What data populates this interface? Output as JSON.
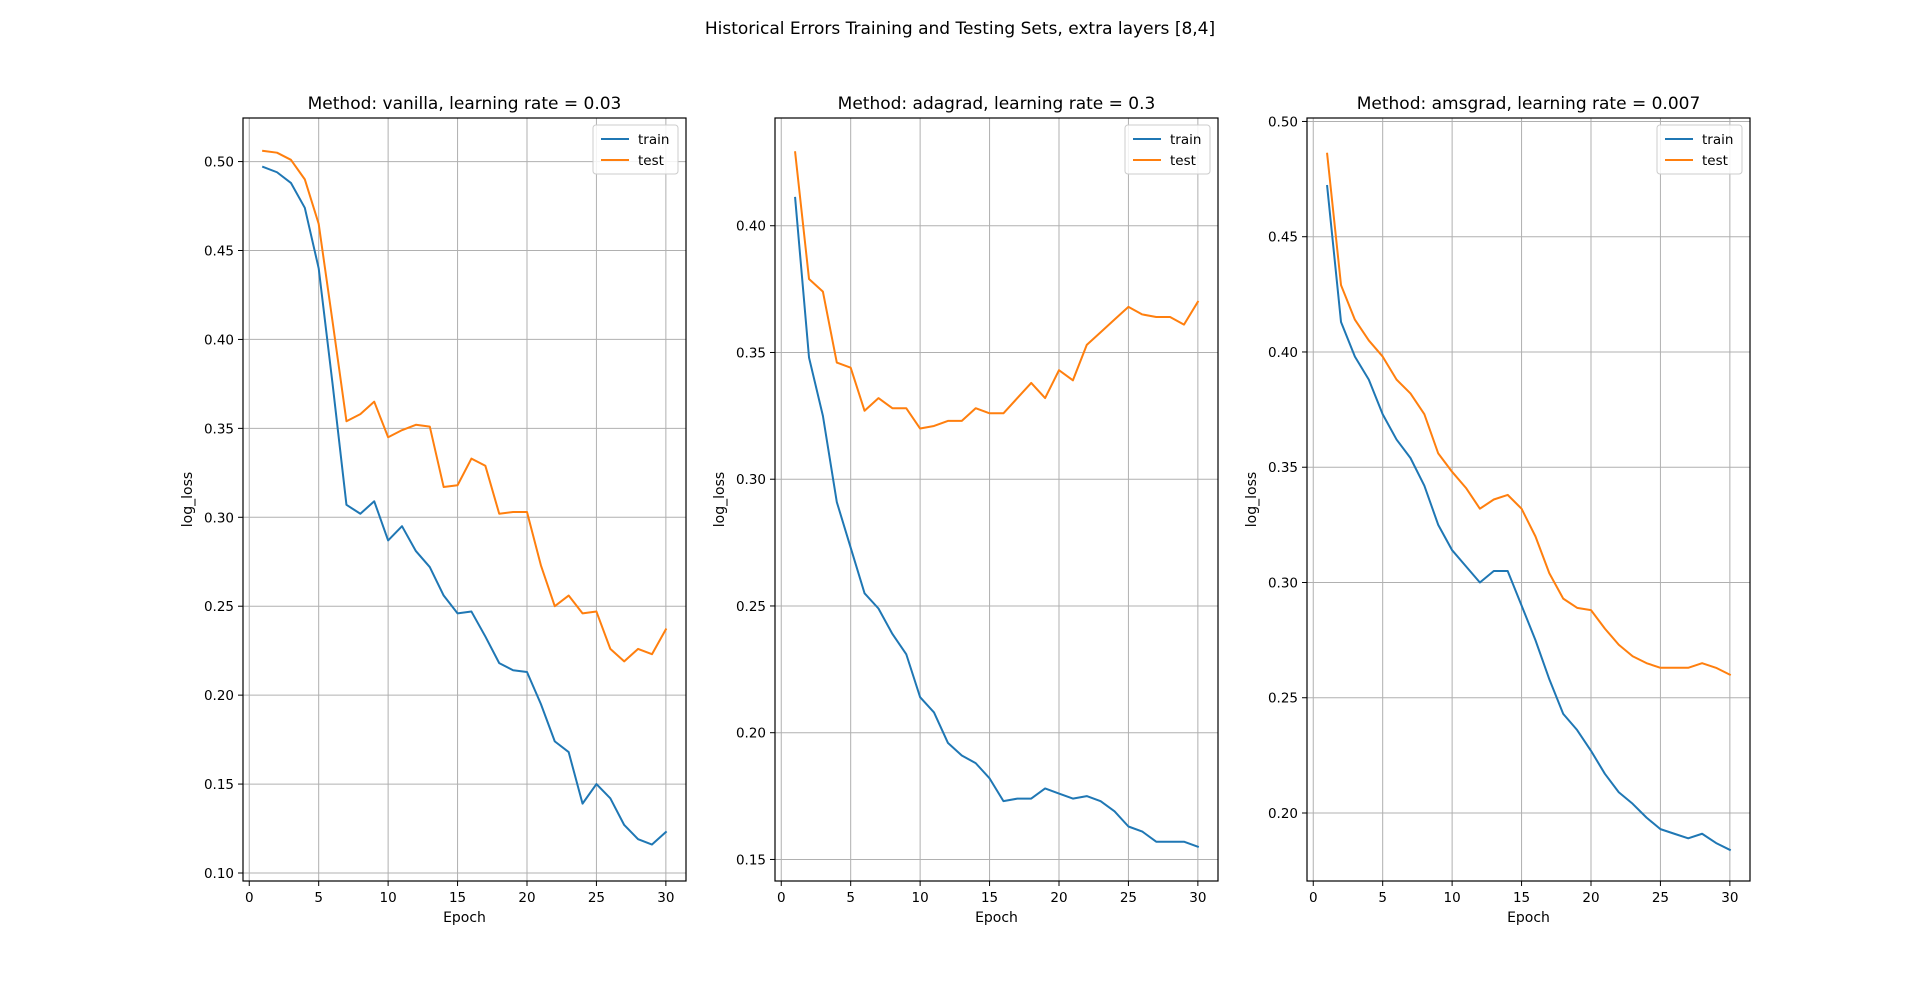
{
  "figure_title": "Historical Errors Training and Testing Sets, extra layers [8,4]",
  "colors": {
    "train": "#1f77b4",
    "test": "#ff7f0e",
    "grid": "#b0b0b0"
  },
  "chart_data": [
    {
      "type": "line",
      "title": "Method: vanilla, learning rate = 0.03",
      "xlabel": "Epoch",
      "ylabel": "log_loss",
      "xlim": [
        -0.45,
        31.45
      ],
      "ylim": [
        0.0955,
        0.5245
      ],
      "xticks": [
        0,
        5,
        10,
        15,
        20,
        25,
        30
      ],
      "yticks": [
        0.1,
        0.15,
        0.2,
        0.25,
        0.3,
        0.35,
        0.4,
        0.45,
        0.5
      ],
      "ytick_labels": [
        "0.10",
        "0.15",
        "0.20",
        "0.25",
        "0.30",
        "0.35",
        "0.40",
        "0.45",
        "0.50"
      ],
      "grid": true,
      "legend": "upper right",
      "x": [
        1,
        2,
        3,
        4,
        5,
        6,
        7,
        8,
        9,
        10,
        11,
        12,
        13,
        14,
        15,
        16,
        17,
        18,
        19,
        20,
        21,
        22,
        23,
        24,
        25,
        26,
        27,
        28,
        29,
        30
      ],
      "series": [
        {
          "name": "train",
          "color": "#1f77b4",
          "values": [
            0.497,
            0.494,
            0.488,
            0.474,
            0.44,
            0.375,
            0.307,
            0.302,
            0.309,
            0.287,
            0.295,
            0.281,
            0.272,
            0.256,
            0.246,
            0.247,
            0.233,
            0.218,
            0.214,
            0.213,
            0.195,
            0.174,
            0.168,
            0.139,
            0.15,
            0.142,
            0.127,
            0.119,
            0.116,
            0.123
          ]
        },
        {
          "name": "test",
          "color": "#ff7f0e",
          "values": [
            0.506,
            0.505,
            0.501,
            0.49,
            0.465,
            0.41,
            0.354,
            0.358,
            0.365,
            0.345,
            0.349,
            0.352,
            0.351,
            0.317,
            0.318,
            0.333,
            0.329,
            0.302,
            0.303,
            0.303,
            0.273,
            0.25,
            0.256,
            0.246,
            0.247,
            0.226,
            0.219,
            0.226,
            0.223,
            0.237
          ]
        }
      ]
    },
    {
      "type": "line",
      "title": "Method: adagrad, learning rate = 0.3",
      "xlabel": "Epoch",
      "ylabel": "log_loss",
      "xlim": [
        -0.45,
        31.45
      ],
      "ylim": [
        0.1415,
        0.4425
      ],
      "xticks": [
        0,
        5,
        10,
        15,
        20,
        25,
        30
      ],
      "yticks": [
        0.15,
        0.2,
        0.25,
        0.3,
        0.35,
        0.4
      ],
      "ytick_labels": [
        "0.15",
        "0.20",
        "0.25",
        "0.30",
        "0.35",
        "0.40"
      ],
      "grid": true,
      "legend": "upper right",
      "x": [
        1,
        2,
        3,
        4,
        5,
        6,
        7,
        8,
        9,
        10,
        11,
        12,
        13,
        14,
        15,
        16,
        17,
        18,
        19,
        20,
        21,
        22,
        23,
        24,
        25,
        26,
        27,
        28,
        29,
        30
      ],
      "series": [
        {
          "name": "train",
          "color": "#1f77b4",
          "values": [
            0.411,
            0.348,
            0.325,
            0.291,
            0.273,
            0.255,
            0.249,
            0.239,
            0.231,
            0.214,
            0.208,
            0.196,
            0.191,
            0.188,
            0.182,
            0.173,
            0.174,
            0.174,
            0.178,
            0.176,
            0.174,
            0.175,
            0.173,
            0.169,
            0.163,
            0.161,
            0.157,
            0.157,
            0.157,
            0.155
          ]
        },
        {
          "name": "test",
          "color": "#ff7f0e",
          "values": [
            0.429,
            0.379,
            0.374,
            0.346,
            0.344,
            0.327,
            0.332,
            0.328,
            0.328,
            0.32,
            0.321,
            0.323,
            0.323,
            0.328,
            0.326,
            0.326,
            0.332,
            0.338,
            0.332,
            0.343,
            0.339,
            0.353,
            0.358,
            0.363,
            0.368,
            0.365,
            0.364,
            0.364,
            0.361,
            0.37
          ]
        }
      ]
    },
    {
      "type": "line",
      "title": "Method: amsgrad, learning rate = 0.007",
      "xlabel": "Epoch",
      "ylabel": "log_loss",
      "xlim": [
        -0.45,
        31.45
      ],
      "ylim": [
        0.1705,
        0.5015
      ],
      "xticks": [
        0,
        5,
        10,
        15,
        20,
        25,
        30
      ],
      "yticks": [
        0.2,
        0.25,
        0.3,
        0.35,
        0.4,
        0.45,
        0.5
      ],
      "ytick_labels": [
        "0.20",
        "0.25",
        "0.30",
        "0.35",
        "0.40",
        "0.45",
        "0.50"
      ],
      "grid": true,
      "legend": "upper right",
      "x": [
        1,
        2,
        3,
        4,
        5,
        6,
        7,
        8,
        9,
        10,
        11,
        12,
        13,
        14,
        15,
        16,
        17,
        18,
        19,
        20,
        21,
        22,
        23,
        24,
        25,
        26,
        27,
        28,
        29,
        30
      ],
      "series": [
        {
          "name": "train",
          "color": "#1f77b4",
          "values": [
            0.472,
            0.413,
            0.398,
            0.388,
            0.373,
            0.362,
            0.354,
            0.342,
            0.325,
            0.314,
            0.307,
            0.3,
            0.305,
            0.305,
            0.29,
            0.275,
            0.258,
            0.243,
            0.236,
            0.227,
            0.217,
            0.209,
            0.204,
            0.198,
            0.193,
            0.191,
            0.189,
            0.191,
            0.187,
            0.184
          ]
        },
        {
          "name": "test",
          "color": "#ff7f0e",
          "values": [
            0.486,
            0.429,
            0.414,
            0.405,
            0.398,
            0.388,
            0.382,
            0.373,
            0.356,
            0.348,
            0.341,
            0.332,
            0.336,
            0.338,
            0.332,
            0.32,
            0.304,
            0.293,
            0.289,
            0.288,
            0.28,
            0.273,
            0.268,
            0.265,
            0.263,
            0.263,
            0.263,
            0.265,
            0.263,
            0.26
          ]
        }
      ]
    }
  ]
}
